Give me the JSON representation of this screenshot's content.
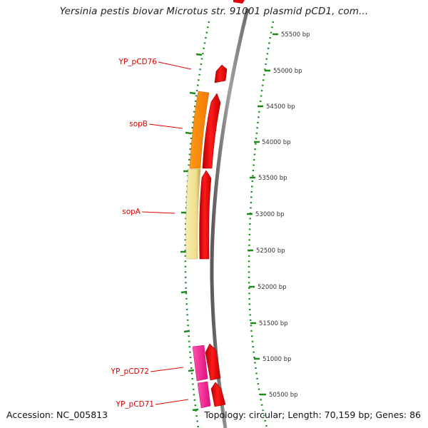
{
  "title": "Yersinia pestis biovar Microtus str. 91001 plasmid pCD1, com...",
  "footer": {
    "accession": "Accession: NC_005813",
    "topology": "Topology: circular; Length: 70,159 bp; Genes: 86"
  },
  "colors": {
    "backbone": "#8a8a8a",
    "tick": "#1e8a1e",
    "label": "#e00000",
    "forward_gene": "#ff0000",
    "orange_gene": "#ff8c00",
    "pale_gene": "#f1e49a",
    "magenta_gene": "#ff1493"
  },
  "scale_ticks": [
    {
      "bp": 55500,
      "label": "55500 bp"
    },
    {
      "bp": 55000,
      "label": "55000 bp"
    },
    {
      "bp": 54500,
      "label": "54500 bp"
    },
    {
      "bp": 54000,
      "label": "54000 bp"
    },
    {
      "bp": 53500,
      "label": "53500 bp"
    },
    {
      "bp": 53000,
      "label": "53000 bp"
    },
    {
      "bp": 52500,
      "label": "52500 bp"
    },
    {
      "bp": 52000,
      "label": "52000 bp"
    },
    {
      "bp": 51500,
      "label": "51500 bp"
    },
    {
      "bp": 51000,
      "label": "51000 bp"
    },
    {
      "bp": 50500,
      "label": "50500 bp"
    }
  ],
  "gene_labels": [
    {
      "name": "YP_pCD76"
    },
    {
      "name": "sopB"
    },
    {
      "name": "sopA"
    },
    {
      "name": "YP_pCD72"
    },
    {
      "name": "YP_pCD71"
    }
  ]
}
